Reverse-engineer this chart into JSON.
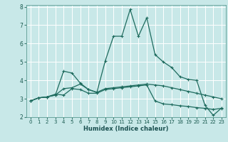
{
  "title": "",
  "xlabel": "Humidex (Indice chaleur)",
  "background_color": "#c8e8e8",
  "grid_color": "#ffffff",
  "line_color": "#1e6b5e",
  "xlim": [
    -0.5,
    23.5
  ],
  "ylim": [
    2,
    8.1
  ],
  "yticks": [
    2,
    3,
    4,
    5,
    6,
    7,
    8
  ],
  "xticks": [
    0,
    1,
    2,
    3,
    4,
    5,
    6,
    7,
    8,
    9,
    10,
    11,
    12,
    13,
    14,
    15,
    16,
    17,
    18,
    19,
    20,
    21,
    22,
    23
  ],
  "series1_x": [
    0,
    1,
    2,
    3,
    4,
    5,
    6,
    7,
    8,
    9,
    10,
    11,
    12,
    13,
    14,
    15,
    16,
    17,
    18,
    19,
    20,
    21,
    22,
    23
  ],
  "series1_y": [
    2.88,
    3.05,
    3.1,
    3.2,
    3.55,
    3.6,
    3.8,
    3.5,
    3.35,
    3.55,
    3.6,
    3.65,
    3.7,
    3.75,
    3.8,
    3.75,
    3.7,
    3.6,
    3.5,
    3.4,
    3.3,
    3.2,
    3.1,
    3.0
  ],
  "series2_x": [
    0,
    1,
    2,
    3,
    4,
    5,
    6,
    7,
    8,
    9,
    10,
    11,
    12,
    13,
    14,
    15,
    16,
    17,
    18,
    19,
    20,
    21,
    22,
    23
  ],
  "series2_y": [
    2.88,
    3.05,
    3.1,
    3.2,
    4.5,
    4.4,
    3.85,
    3.5,
    3.35,
    5.05,
    6.4,
    6.4,
    7.85,
    6.4,
    7.4,
    5.4,
    5.0,
    4.7,
    4.2,
    4.05,
    4.0,
    2.65,
    2.1,
    2.5
  ],
  "series3_x": [
    0,
    1,
    2,
    3,
    4,
    5,
    6,
    7,
    8,
    9,
    10,
    11,
    12,
    13,
    14,
    15,
    16,
    17,
    18,
    19,
    20,
    21,
    22,
    23
  ],
  "series3_y": [
    2.88,
    3.05,
    3.1,
    3.25,
    3.2,
    3.55,
    3.5,
    3.3,
    3.3,
    3.5,
    3.55,
    3.6,
    3.65,
    3.7,
    3.75,
    2.88,
    2.72,
    2.68,
    2.62,
    2.58,
    2.52,
    2.48,
    2.42,
    2.48
  ]
}
